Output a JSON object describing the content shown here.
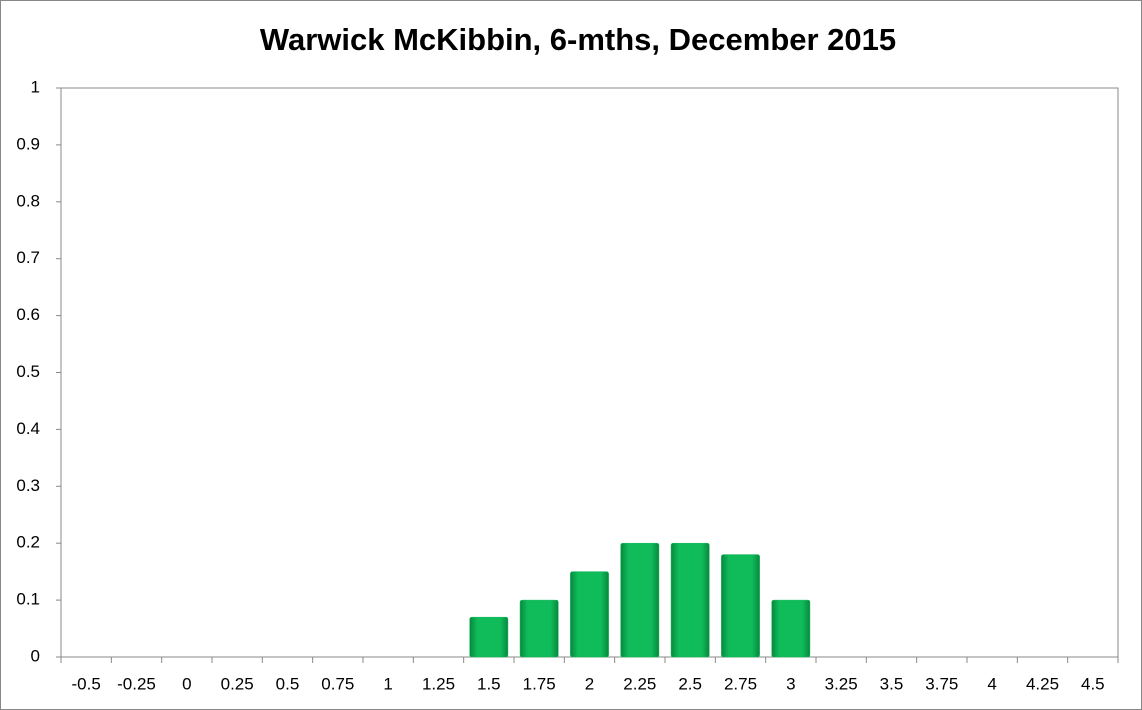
{
  "chart_data": {
    "type": "bar",
    "title": "Warwick McKibbin, 6-mths, December 2015",
    "categories": [
      "-0.5",
      "-0.25",
      "0",
      "0.25",
      "0.5",
      "0.75",
      "1",
      "1.25",
      "1.5",
      "1.75",
      "2",
      "2.25",
      "2.5",
      "2.75",
      "3",
      "3.25",
      "3.5",
      "3.75",
      "4",
      "4.25",
      "4.5"
    ],
    "values": [
      0,
      0,
      0,
      0,
      0,
      0,
      0,
      0,
      0.07,
      0.1,
      0.15,
      0.2,
      0.2,
      0.18,
      0.1,
      0,
      0,
      0,
      0,
      0,
      0
    ],
    "color": "#10b858",
    "ylim": [
      0,
      1
    ],
    "yticks": [
      0,
      0.1,
      0.2,
      0.3,
      0.4,
      0.5,
      0.6,
      0.7,
      0.8,
      0.9,
      1
    ],
    "grid": false
  }
}
